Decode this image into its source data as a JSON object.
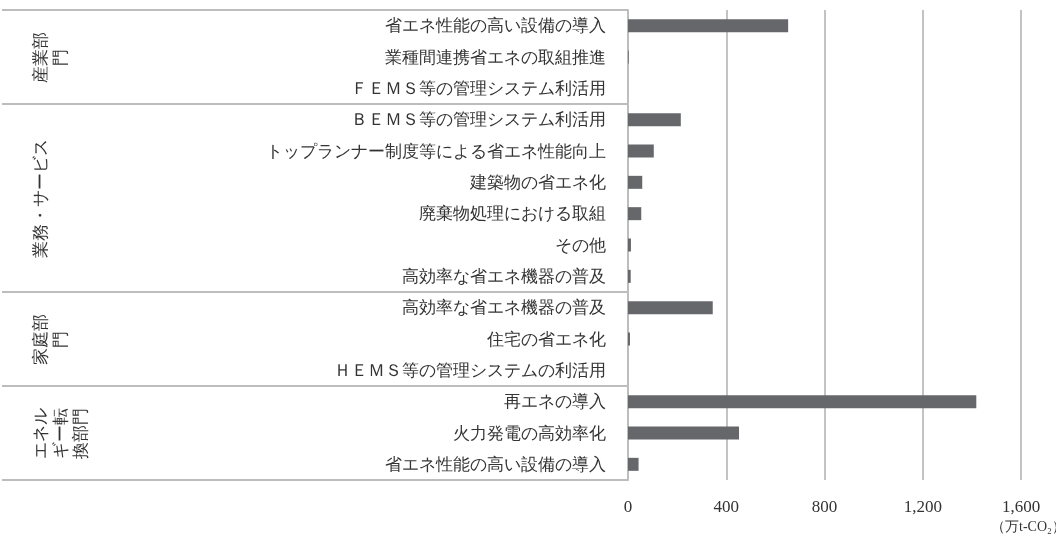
{
  "chart_data": {
    "type": "bar",
    "orientation": "horizontal",
    "categories": [
      "省エネ性能の高い設備の導入",
      "業種間連携省エネの取組推進",
      "ＦＥＭＳ等の管理システム利活用",
      "ＢＥＭＳ等の管理システム利活用",
      "トップランナー制度等による省エネ性能向上",
      "建築物の省エネ化",
      "廃棄物処理における取組",
      "その他",
      "高効率な省エネ機器の普及",
      "高効率な省エネ機器の普及",
      "住宅の省エネ化",
      "ＨＥＭＳ等の管理システムの利活用",
      "再エネの導入",
      "火力発電の高効率化",
      "省エネ性能の高い設備の導入"
    ],
    "values": [
      652,
      3,
      0,
      215,
      105,
      58,
      54,
      12,
      11,
      345,
      8,
      0,
      1418,
      452,
      43
    ],
    "color": "#66676b",
    "xlim": [
      0,
      1600
    ],
    "xticks": [
      0,
      400,
      800,
      {
        "value": 1200,
        "label": "1,200"
      },
      {
        "value": 1600,
        "label": "1,600"
      }
    ],
    "xlabel": "（万t-CO₂）",
    "annotations": [
      "産業部門",
      "業務・サービス",
      "家庭部門",
      "エネルギー転換部門"
    ],
    "grid": "x"
  }
}
